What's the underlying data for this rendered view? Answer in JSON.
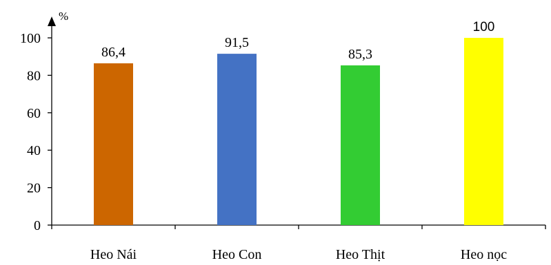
{
  "chart_data": {
    "type": "bar",
    "categories": [
      "Heo Nái",
      "Heo Con",
      "Heo Thịt",
      "Heo nọc"
    ],
    "values": [
      86.4,
      91.5,
      85.3,
      100
    ],
    "data_labels": [
      "86,4",
      "91,5",
      "85,3",
      "100"
    ],
    "colors": [
      "#cc6600",
      "#4472c4",
      "#33cc33",
      "#ffff00"
    ],
    "ylabel": "%",
    "ylim": [
      0,
      100
    ],
    "yticks": [
      0,
      20,
      40,
      60,
      80,
      100
    ],
    "ytick_labels": [
      "0",
      "20",
      "40",
      "60",
      "80",
      "100"
    ],
    "grid": false,
    "legend": "none"
  }
}
